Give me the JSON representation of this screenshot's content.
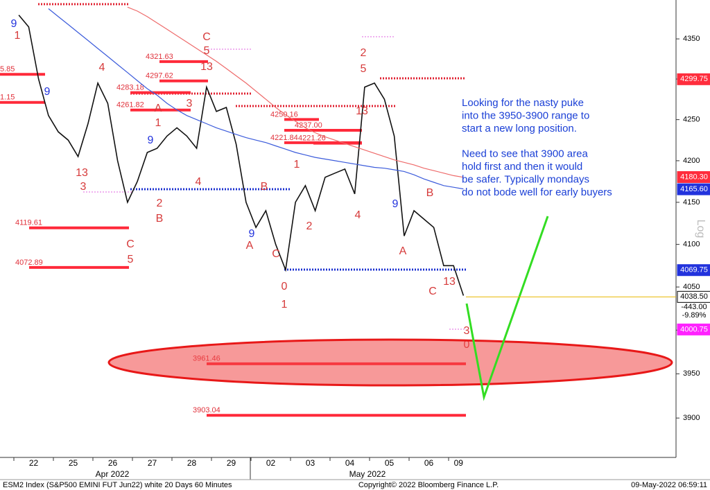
{
  "chart_data": {
    "type": "line",
    "log_scale": true,
    "y_axis_label": "Log",
    "ylim": [
      3856,
      4399
    ],
    "yticks": [
      3900,
      3950,
      4000,
      4050,
      4100,
      4150,
      4200,
      4250,
      4300,
      4350
    ],
    "categories": [
      "22",
      null,
      null,
      null,
      "25",
      null,
      null,
      null,
      "26",
      null,
      null,
      null,
      "27",
      null,
      null,
      null,
      "28",
      null,
      null,
      null,
      "29",
      null,
      null,
      null,
      "02",
      null,
      null,
      null,
      "03",
      null,
      null,
      null,
      "04",
      null,
      null,
      null,
      "05",
      null,
      null,
      null,
      "06",
      null,
      null,
      null,
      "09",
      null
    ],
    "months": [
      "Apr 2022",
      "May 2022"
    ],
    "series": [
      {
        "name": "price",
        "color": "#111111",
        "values": [
          4380,
          4365,
          4300,
          4255,
          4235,
          4225,
          4205,
          4245,
          4295,
          4270,
          4200,
          4150,
          4175,
          4210,
          4215,
          4230,
          4240,
          4230,
          4215,
          4290,
          4260,
          4265,
          4220,
          4150,
          4120,
          4140,
          4100,
          4070,
          4150,
          4170,
          4140,
          4180,
          4185,
          4190,
          4160,
          4290,
          4295,
          4275,
          4230,
          4110,
          4140,
          4130,
          4120,
          4075,
          4075,
          4040
        ]
      },
      {
        "name": "moving-average-short",
        "color": "#3b5bdb",
        "values": [
          null,
          null,
          null,
          4388,
          4378,
          4368,
          4358,
          4348,
          4338,
          4328,
          4318,
          4308,
          4298,
          4288,
          4280,
          4270,
          4262,
          4255,
          4250,
          4245,
          4240,
          4236,
          4232,
          4228,
          4225,
          4222,
          4218,
          4214,
          4210,
          4207,
          4204,
          4202,
          4200,
          4198,
          4196,
          4194,
          4192,
          4191,
          4189,
          4187,
          4183,
          4178,
          4174,
          4170,
          4168,
          4166
        ]
      },
      {
        "name": "moving-average-long",
        "color": "#ee6a6a",
        "values": [
          null,
          null,
          null,
          null,
          null,
          null,
          null,
          null,
          null,
          null,
          null,
          4390,
          4385,
          4378,
          4370,
          4362,
          4354,
          4346,
          4338,
          4330,
          4322,
          4313,
          4304,
          4295,
          4285,
          4275,
          4265,
          4256,
          4248,
          4240,
          4234,
          4229,
          4225,
          4221,
          4217,
          4213,
          4209,
          4205,
          4201,
          4198,
          4195,
          4191,
          4188,
          4185,
          4182,
          4180
        ]
      }
    ],
    "levels": [
      {
        "value": 4305.85,
        "label": "5.85"
      },
      {
        "value": 4271.15,
        "label": "1.15"
      },
      {
        "value": 4321.63,
        "label": "4321.63"
      },
      {
        "value": 4297.62,
        "label": "4297.62"
      },
      {
        "value": 4283.18,
        "label": "4283.18"
      },
      {
        "value": 4261.82,
        "label": "4261.82"
      },
      {
        "value": 4250.16,
        "label": "4250.16"
      },
      {
        "value": 4237.0,
        "label": "4237.00"
      },
      {
        "value": 4221.84,
        "label": "4221.84"
      },
      {
        "value": 4221.26,
        "label": "4221.26"
      },
      {
        "value": 4119.61,
        "label": "4119.61"
      },
      {
        "value": 4072.89,
        "label": "4072.89"
      },
      {
        "value": 3961.46,
        "label": "3961.46"
      },
      {
        "value": 3903.04,
        "label": "3903.04"
      }
    ],
    "price_tags": [
      {
        "value": 4299.75,
        "label": "4299.75",
        "color": "#ff2d3d"
      },
      {
        "value": 4180.3,
        "label": "4180.30",
        "color": "#ff2d3d"
      },
      {
        "value": 4165.6,
        "label": "4165.60",
        "color": "#2233dd"
      },
      {
        "value": 4069.75,
        "label": "4069.75",
        "color": "#2233dd"
      },
      {
        "value": 4038.5,
        "label": "4038.50",
        "color": "#ffffff"
      },
      {
        "value": 4000.75,
        "label": "4000.75",
        "color": "#ff22ff"
      }
    ],
    "change_labels": [
      "-443.00",
      "-9.89%"
    ],
    "annotations": [
      {
        "text": "9",
        "color": "#2233dd"
      },
      {
        "text": "1",
        "color": "#d63a3a"
      },
      {
        "text": "9",
        "color": "#2233dd"
      },
      {
        "text": "4",
        "color": "#d63a3a"
      },
      {
        "text": "13",
        "color": "#d63a3a"
      },
      {
        "text": "3",
        "color": "#d63a3a"
      },
      {
        "text": "A",
        "color": "#d63a3a"
      },
      {
        "text": "1",
        "color": "#d63a3a"
      },
      {
        "text": "3",
        "color": "#d63a3a"
      },
      {
        "text": "9",
        "color": "#2233dd"
      },
      {
        "text": "C",
        "color": "#d63a3a"
      },
      {
        "text": "5",
        "color": "#d63a3a"
      },
      {
        "text": "2",
        "color": "#d63a3a"
      },
      {
        "text": "B",
        "color": "#d63a3a"
      },
      {
        "text": "4",
        "color": "#d63a3a"
      },
      {
        "text": "C",
        "color": "#d63a3a"
      },
      {
        "text": "5",
        "color": "#d63a3a"
      },
      {
        "text": "13",
        "color": "#d63a3a"
      },
      {
        "text": "A",
        "color": "#d63a3a"
      },
      {
        "text": "9",
        "color": "#2233dd"
      },
      {
        "text": "B",
        "color": "#d63a3a"
      },
      {
        "text": "C",
        "color": "#d63a3a"
      },
      {
        "text": "0",
        "color": "#d63a3a"
      },
      {
        "text": "1",
        "color": "#d63a3a"
      },
      {
        "text": "1",
        "color": "#d63a3a"
      },
      {
        "text": "2",
        "color": "#d63a3a"
      },
      {
        "text": "4",
        "color": "#d63a3a"
      },
      {
        "text": "2",
        "color": "#d63a3a"
      },
      {
        "text": "5",
        "color": "#d63a3a"
      },
      {
        "text": "13",
        "color": "#d63a3a"
      },
      {
        "text": "9",
        "color": "#2233dd"
      },
      {
        "text": "A",
        "color": "#d63a3a"
      },
      {
        "text": "B",
        "color": "#d63a3a"
      },
      {
        "text": "C",
        "color": "#d63a3a"
      },
      {
        "text": "13",
        "color": "#d63a3a"
      },
      {
        "text": "3",
        "color": "#d63a3a"
      },
      {
        "text": "0",
        "color": "#d63a3a"
      }
    ],
    "commentary": [
      "Looking for the nasty puke",
      "into the 3950-3900 range to",
      "start a new long position.",
      "Need to see that 3900 area",
      "hold first and then it would",
      "be safer. Typically mondays",
      "do not bode well for early buyers"
    ],
    "footer": {
      "security": "ESM2 Index (S&P500 EMINI FUT  Jun22) white 20 Days 60 Minutes",
      "copyright": "Copyright© 2022 Bloomberg Finance L.P.",
      "timestamp": "09-May-2022 06:59:11"
    }
  }
}
